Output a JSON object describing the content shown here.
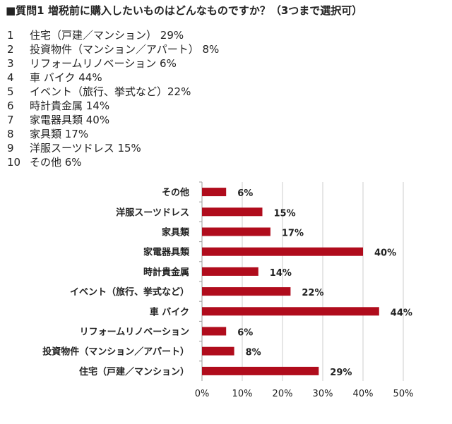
{
  "title": "■質問1 増税前に購入したいものはどんなものですか？（3つまで選択可）",
  "list": [
    {
      "n": "1",
      "text": "住宅（戸建／マンション） 29%"
    },
    {
      "n": "2",
      "text": "投資物件（マンション／アパート） 8%"
    },
    {
      "n": "3",
      "text": "リフォームリノベーション 6%"
    },
    {
      "n": "4",
      "text": "車 バイク 44%"
    },
    {
      "n": "5",
      "text": "イベント（旅行、挙式など）22%"
    },
    {
      "n": "6",
      "text": "時計貴金属 14%"
    },
    {
      "n": "7",
      "text": "家電器具類 40%"
    },
    {
      "n": "8",
      "text": "家具類 17%"
    },
    {
      "n": "9",
      "text": "洋服スーツドレス 15%"
    },
    {
      "n": "10",
      "text": "その他 6%"
    }
  ],
  "chart_data": {
    "type": "bar",
    "orientation": "horizontal",
    "categories": [
      "その他",
      "洋服スーツドレス",
      "家具類",
      "家電器具類",
      "時計貴金属",
      "イベント（旅行、挙式など）",
      "車 バイク",
      "リフォームリノベーション",
      "投資物件（マンション／アパート）",
      "住宅（戸建／マンション）"
    ],
    "values": [
      6,
      15,
      17,
      40,
      14,
      22,
      44,
      6,
      8,
      29
    ],
    "data_labels": [
      "6%",
      "15%",
      "17%",
      "40%",
      "14%",
      "22%",
      "44%",
      "6%",
      "8%",
      "29%"
    ],
    "xlim": [
      0,
      50
    ],
    "xticks": [
      "0%",
      "10%",
      "20%",
      "30%",
      "40%",
      "50%"
    ],
    "grid": true,
    "bar_color": "#b00c1c"
  }
}
